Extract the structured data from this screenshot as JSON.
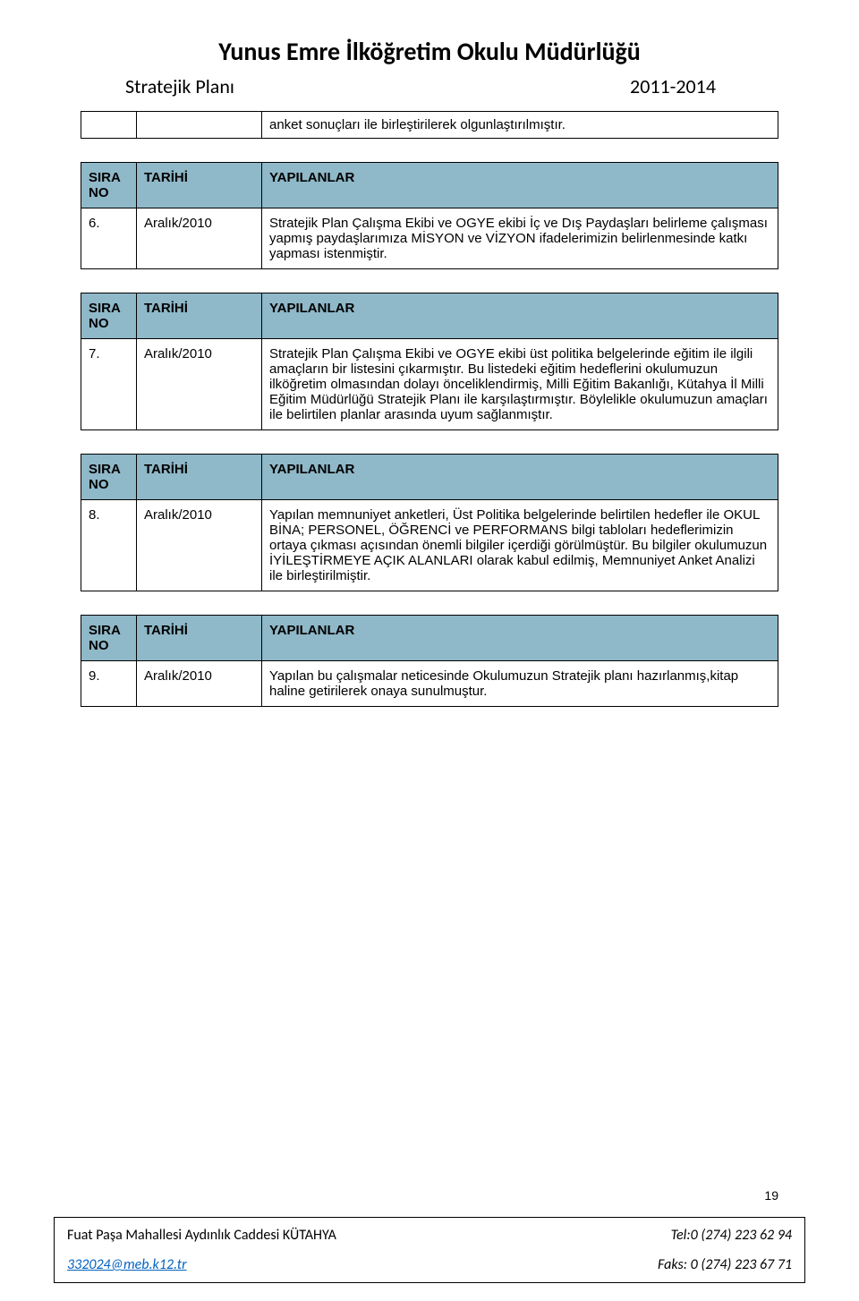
{
  "header": {
    "title": "Yunus Emre İlköğretim Okulu Müdürlüğü",
    "subtitle_left": "Stratejik Planı",
    "subtitle_right": "2011-2014"
  },
  "intro_text": "anket sonuçları ile birleştirilerek olgunlaştırılmıştır.",
  "columns": {
    "no": "SIRA NO",
    "date": "TARİHİ",
    "desc": "YAPILANLAR"
  },
  "rows": [
    {
      "no": "6.",
      "date": "Aralık/2010",
      "desc": "Stratejik Plan Çalışma Ekibi ve OGYE ekibi İç ve Dış Paydaşları belirleme çalışması yapmış paydaşlarımıza MİSYON ve VİZYON ifadelerimizin belirlenmesinde katkı yapması istenmiştir."
    },
    {
      "no": "7.",
      "date": "Aralık/2010",
      "desc": "Stratejik Plan Çalışma Ekibi ve OGYE ekibi üst politika belgelerinde eğitim ile ilgili amaçların bir listesini çıkarmıştır. Bu listedeki eğitim hedeflerini okulumuzun ilköğretim olmasından dolayı önceliklendirmiş, Milli Eğitim Bakanlığı, Kütahya İl Milli Eğitim Müdürlüğü Stratejik Planı ile karşılaştırmıştır. Böylelikle okulumuzun amaçları ile belirtilen planlar arasında uyum sağlanmıştır."
    },
    {
      "no": "8.",
      "date": "Aralık/2010",
      "desc": "Yapılan memnuniyet anketleri, Üst Politika belgelerinde belirtilen hedefler ile  OKUL BİNA; PERSONEL, ÖĞRENCİ ve PERFORMANS  bilgi tabloları hedeflerimizin ortaya çıkması açısından önemli bilgiler içerdiği görülmüştür. Bu bilgiler okulumuzun İYİLEŞTİRMEYE AÇIK ALANLARI olarak kabul edilmiş, Memnuniyet Anket Analizi ile birleştirilmiştir."
    },
    {
      "no": "9.",
      "date": "Aralık/2010",
      "desc": "Yapılan bu çalışmalar neticesinde Okulumuzun Stratejik planı hazırlanmış,kitap haline getirilerek onaya sunulmuştur."
    }
  ],
  "page_number": "19",
  "footer": {
    "address": "Fuat Paşa Mahallesi Aydınlık Caddesi KÜTAHYA",
    "tel": "Tel:0 (274) 223 62 94",
    "email": "332024@meb.k12.tr",
    "fax": "Faks: 0 (274) 223 67 71"
  },
  "colors": {
    "header_bg": "#8fb8c8",
    "border": "#000000",
    "link": "#0563c1",
    "text": "#000000",
    "page_bg": "#ffffff"
  }
}
